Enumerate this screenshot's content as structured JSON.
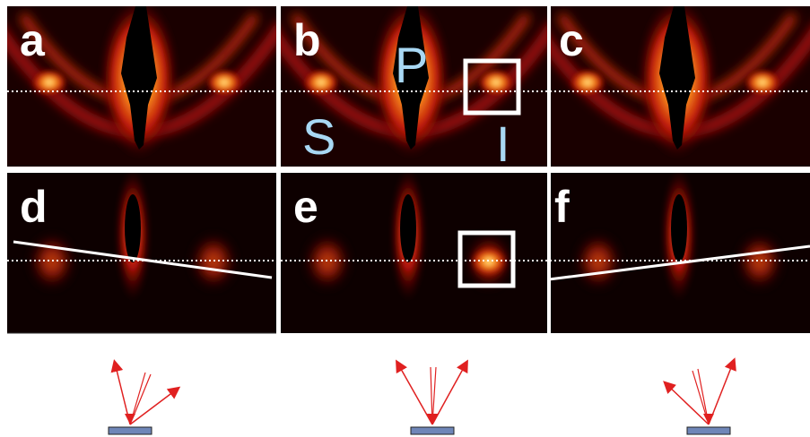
{
  "panels": [
    {
      "label": "a"
    },
    {
      "label": "b",
      "annotations": [
        "P",
        "S",
        "I"
      ]
    },
    {
      "label": "c"
    },
    {
      "label": "d"
    },
    {
      "label": "e"
    },
    {
      "label": "f"
    }
  ]
}
